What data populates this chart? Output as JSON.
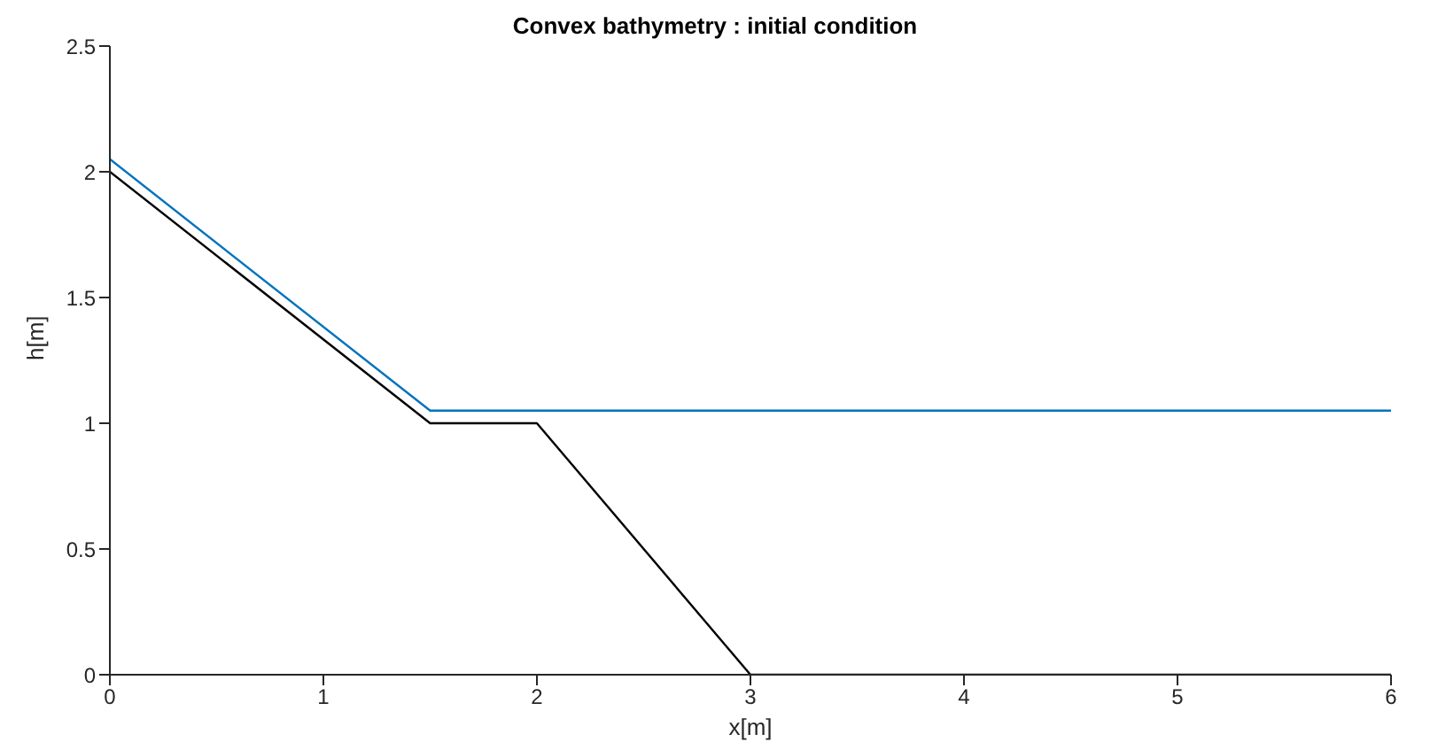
{
  "chart_data": {
    "type": "line",
    "title": "Convex bathymetry : initial condition",
    "xlabel": "x[m]",
    "ylabel": "h[m]",
    "series": [
      {
        "color": "#0072bd",
        "x": [
          0,
          1.5,
          6
        ],
        "values": [
          2.05,
          1.05,
          1.05
        ]
      },
      {
        "color": "#000000",
        "x": [
          0,
          1.5,
          2,
          3,
          6
        ],
        "values": [
          2,
          1,
          1,
          0,
          0
        ]
      }
    ],
    "xlim": [
      0,
      6
    ],
    "xticks": [
      0,
      1,
      2,
      3,
      4,
      5,
      6
    ],
    "ylim": [
      0,
      2.5
    ],
    "yticks": [
      0,
      0.5,
      1,
      1.5,
      2,
      2.5
    ],
    "marker": "none",
    "line_style": "solid"
  }
}
